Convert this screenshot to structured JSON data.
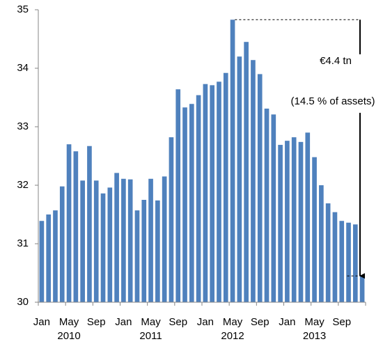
{
  "chart_data": {
    "type": "bar",
    "categories": [
      "Jan",
      null,
      null,
      null,
      "May",
      null,
      null,
      null,
      "Sep",
      null,
      null,
      null,
      "Jan",
      null,
      null,
      null,
      "May",
      null,
      null,
      null,
      "Sep",
      null,
      null,
      null,
      "Jan",
      null,
      null,
      null,
      "May",
      null,
      null,
      null,
      "Sep",
      null,
      null,
      null,
      "Jan",
      null,
      null,
      null,
      "May",
      null,
      null,
      null,
      "Sep",
      null,
      null,
      null
    ],
    "year_labels": [
      "2010",
      "2011",
      "2012",
      "2013"
    ],
    "values": [
      31.39,
      31.5,
      31.57,
      31.98,
      32.7,
      32.58,
      32.08,
      32.67,
      32.08,
      31.86,
      31.96,
      32.21,
      32.11,
      32.1,
      31.57,
      31.75,
      32.11,
      31.74,
      32.15,
      32.82,
      33.64,
      33.33,
      33.39,
      33.54,
      33.73,
      33.71,
      33.77,
      33.92,
      34.83,
      34.2,
      34.45,
      34.14,
      33.9,
      33.31,
      33.21,
      32.69,
      32.76,
      32.82,
      32.74,
      32.9,
      32.48,
      32.0,
      31.69,
      31.54,
      31.39,
      31.36,
      31.33,
      30.45
    ],
    "color": "#4f81bd",
    "ylim": [
      30,
      35
    ],
    "yticks": [
      30,
      31,
      32,
      33,
      34,
      35
    ],
    "annotations": [
      "€4.4 tn",
      "(14.5 % of assets)"
    ]
  }
}
